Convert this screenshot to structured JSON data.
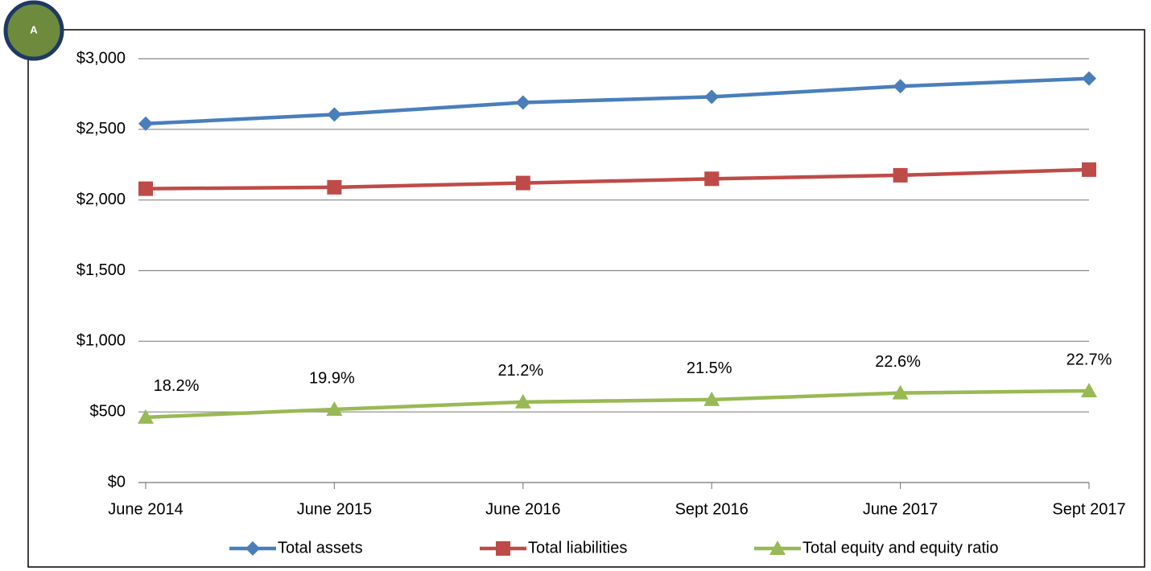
{
  "chart_data": {
    "type": "line",
    "categories": [
      "June 2014",
      "June 2015",
      "June 2016",
      "Sept 2016",
      "June 2017",
      "Sept 2017"
    ],
    "series": [
      {
        "name": "Total assets",
        "color": "#4a7ebb",
        "marker": "diamond",
        "values": [
          2540,
          2605,
          2690,
          2730,
          2805,
          2860
        ]
      },
      {
        "name": "Total liabilities",
        "color": "#be4b48",
        "marker": "square",
        "values": [
          2080,
          2090,
          2120,
          2150,
          2175,
          2215
        ]
      },
      {
        "name": "Total equity and equity ratio",
        "color": "#98b954",
        "marker": "triangle",
        "values": [
          462,
          518,
          570,
          587,
          634,
          649
        ],
        "annotations": [
          "18.2%",
          "19.9%",
          "21.2%",
          "21.5%",
          "22.6%",
          "22.7%"
        ]
      }
    ],
    "ylim": [
      0,
      3000
    ],
    "yticks": [
      {
        "value": 0,
        "label": "$0"
      },
      {
        "value": 500,
        "label": "$500"
      },
      {
        "value": 1000,
        "label": "$1,000"
      },
      {
        "value": 1500,
        "label": "$1,500"
      },
      {
        "value": 2000,
        "label": "$2,000"
      },
      {
        "value": 2500,
        "label": "$2,500"
      },
      {
        "value": 3000,
        "label": "$3,000"
      }
    ],
    "grid": true,
    "legend": "bottom",
    "badge": "A"
  }
}
